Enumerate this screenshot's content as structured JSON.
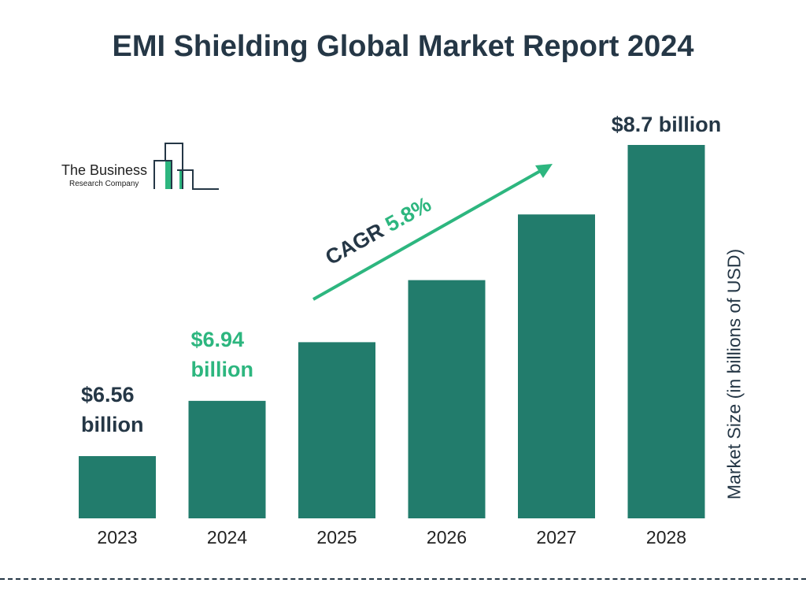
{
  "title": "EMI Shielding Global Market Report 2024",
  "logo": {
    "line1": "The Business",
    "line2": "Research Company"
  },
  "colors": {
    "bar": "#227c6c",
    "title": "#253746",
    "accent": "#2db67f"
  },
  "chart_data": {
    "type": "bar",
    "categories": [
      "2023",
      "2024",
      "2025",
      "2026",
      "2027",
      "2028"
    ],
    "values": [
      6.56,
      6.94,
      null,
      null,
      null,
      8.7
    ],
    "data_labels": [
      {
        "category": "2023",
        "line1": "$6.56",
        "line2": "billion",
        "color": "#253746"
      },
      {
        "category": "2024",
        "line1": "$6.94",
        "line2": "billion",
        "color": "#2db67f"
      },
      {
        "category": "2028",
        "line1": "$8.7 billion",
        "line2": "",
        "color": "#253746"
      }
    ],
    "annotation": {
      "label": "CAGR",
      "value": "5.8%"
    },
    "ylabel": "Market Size (in billions of USD)",
    "xlabel": "",
    "grid": false
  }
}
